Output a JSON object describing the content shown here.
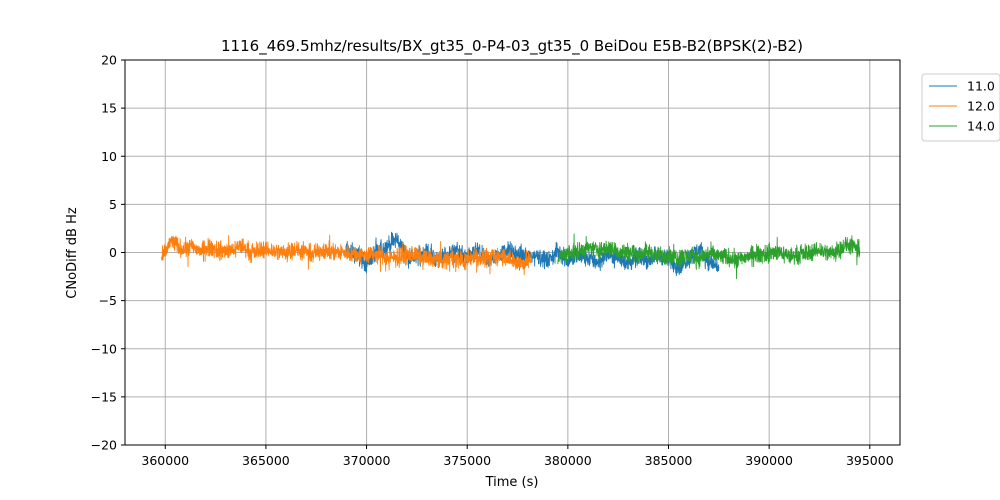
{
  "chart_data": {
    "type": "line",
    "title": "1116_469.5mhz/results/BX_gt35_0-P4-03_gt35_0 BeiDou E5B-B2(BPSK(2)-B2)",
    "xlabel": "Time (s)",
    "ylabel": "CNoDiff dB Hz",
    "xlim": [
      358000,
      396500
    ],
    "ylim": [
      -20,
      20
    ],
    "xticks": [
      360000,
      365000,
      370000,
      375000,
      380000,
      385000,
      390000,
      395000
    ],
    "yticks": [
      -20,
      -15,
      -10,
      -5,
      0,
      5,
      10,
      15,
      20
    ],
    "grid": true,
    "legend_position": "outside-top-right",
    "series": [
      {
        "name": "11.0",
        "color": "#1f77b4",
        "x": [
          369000,
          369500,
          370000,
          370500,
          371000,
          371500,
          372000,
          372500,
          373000,
          373500,
          374000,
          374500,
          375000,
          375500,
          376000,
          376500,
          377000,
          377500,
          378000,
          378500,
          379000,
          379500,
          380000,
          380500,
          381000,
          381500,
          382000,
          382500,
          383000,
          383500,
          384000,
          384500,
          385000,
          385500,
          386000,
          386500,
          387000,
          387500
        ],
        "y": [
          0.3,
          -0.2,
          -1.2,
          0.1,
          0.6,
          1.4,
          -0.4,
          -0.5,
          0.2,
          -0.8,
          -0.3,
          0.2,
          -0.6,
          0.1,
          -0.9,
          -0.4,
          0.3,
          -0.2,
          -0.5,
          -0.3,
          -0.9,
          0.1,
          -0.8,
          -0.4,
          -0.6,
          -1.0,
          -0.2,
          -0.6,
          -1.1,
          -0.4,
          -0.8,
          -0.3,
          -0.7,
          -1.5,
          -0.6,
          0.4,
          -0.9,
          -1.5
        ]
      },
      {
        "name": "12.0",
        "color": "#ff7f0e",
        "x": [
          359800,
          360300,
          360800,
          361300,
          361800,
          362300,
          362800,
          363300,
          363800,
          364300,
          364800,
          365300,
          365800,
          366300,
          366800,
          367300,
          367800,
          368300,
          368800,
          369300,
          369800,
          370300,
          370800,
          371300,
          371800,
          372300,
          372800,
          373300,
          373800,
          374300,
          374800,
          375300,
          375800,
          376300,
          376800,
          377300,
          377800,
          378200
        ],
        "y": [
          -0.8,
          1.2,
          0.4,
          0.6,
          0.2,
          0.5,
          0.1,
          0.3,
          0.7,
          -0.1,
          0.4,
          0.2,
          0.0,
          0.3,
          0.1,
          -0.2,
          0.3,
          0.1,
          0.0,
          -0.1,
          -0.3,
          -0.2,
          -0.4,
          -0.6,
          -0.3,
          -0.2,
          -0.5,
          -0.7,
          -0.8,
          -0.5,
          -0.9,
          -0.4,
          -0.7,
          -0.5,
          -0.3,
          -0.9,
          -1.2,
          -0.6
        ]
      },
      {
        "name": "14.0",
        "color": "#2ca02c",
        "x": [
          379500,
          380000,
          380500,
          381000,
          381500,
          382000,
          382500,
          383000,
          383500,
          384000,
          384500,
          385000,
          385500,
          386000,
          386500,
          387000,
          387500,
          388000,
          388500,
          389000,
          389500,
          390000,
          390500,
          391000,
          391500,
          392000,
          392500,
          393000,
          393500,
          394000,
          394500
        ],
        "y": [
          -0.6,
          -0.1,
          0.2,
          0.4,
          0.3,
          0.5,
          0.1,
          0.2,
          -0.2,
          0.1,
          -0.4,
          -0.2,
          -0.5,
          -0.3,
          -0.6,
          -0.1,
          -0.4,
          -0.5,
          -0.8,
          -0.3,
          -0.2,
          -0.1,
          0.1,
          -0.4,
          -0.2,
          0.0,
          0.3,
          -0.1,
          0.4,
          0.8,
          0.2
        ]
      }
    ]
  }
}
